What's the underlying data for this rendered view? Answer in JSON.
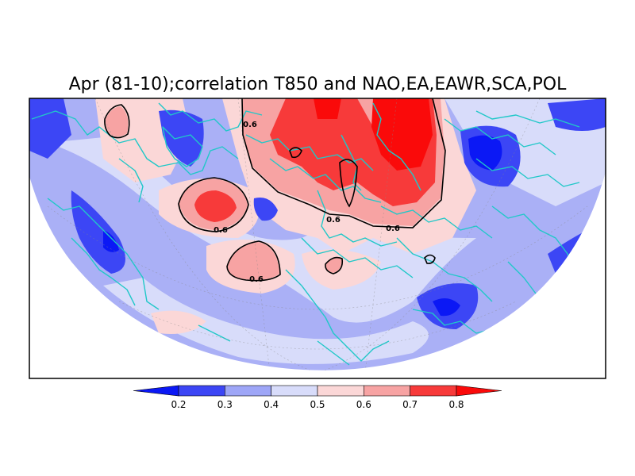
{
  "title": "Apr (81-10);correlation T850 and NAO,EA,EAWR,SCA,POL",
  "contour_label": "0.6",
  "colorbar": {
    "ticks": [
      "0.2",
      "0.3",
      "0.4",
      "0.5",
      "0.6",
      "0.7",
      "0.8"
    ],
    "colors": [
      "#0b18f5",
      "#3c46f5",
      "#9ea6f7",
      "#d8dcfa",
      "#fbd7d7",
      "#f7a3a3",
      "#f73a3a",
      "#fa0a0a"
    ]
  },
  "colors": {
    "background_field": "#aab0f6",
    "coastline": "#20c8c8",
    "contour": "#000000",
    "frame": "#000000"
  }
}
